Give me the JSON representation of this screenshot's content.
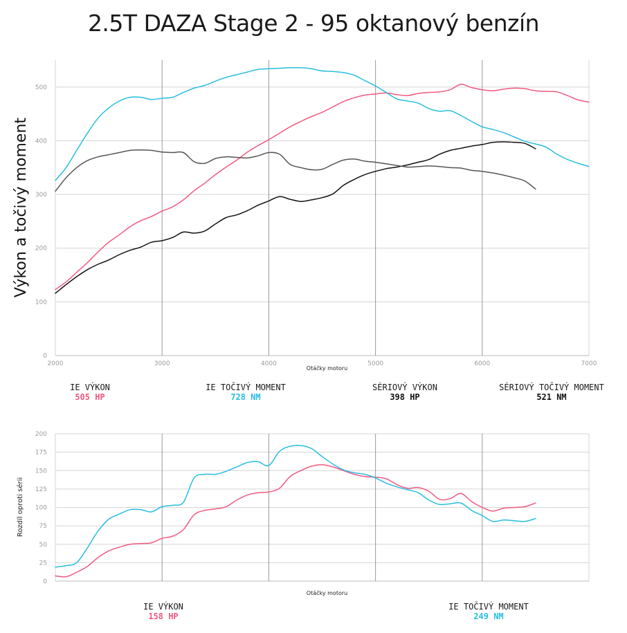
{
  "title": "2.5T DAZA Stage 2 - 95 oktanový benzín",
  "colors": {
    "pink": "#f0597f",
    "cyan": "#27bde0",
    "gray": "#555555",
    "black": "#111111",
    "grid": "#d4d4d4",
    "gridDark": "#999999"
  },
  "chart_data": [
    {
      "type": "line",
      "title": "2.5T DAZA Stage 2 - 95 oktanový benzín",
      "xlabel": "Otáčky motoru",
      "ylabel": "Výkon a točivý moment",
      "xlim": [
        2000,
        7000
      ],
      "ylim": [
        0,
        550
      ],
      "xticks": [
        2000,
        3000,
        4000,
        5000,
        6000,
        7000
      ],
      "yticks": [
        0,
        100,
        200,
        300,
        400,
        500
      ],
      "series": [
        {
          "name": "IE VÝKON",
          "color": "#f0597f",
          "x": [
            2000,
            2100,
            2200,
            2300,
            2400,
            2500,
            2600,
            2700,
            2800,
            2900,
            3000,
            3100,
            3200,
            3300,
            3400,
            3500,
            3600,
            3700,
            3800,
            3900,
            4000,
            4100,
            4200,
            4300,
            4400,
            4500,
            4600,
            4700,
            4800,
            4900,
            5000,
            5100,
            5200,
            5300,
            5400,
            5500,
            5600,
            5700,
            5800,
            5900,
            6000,
            6100,
            6200,
            6300,
            6400,
            6500,
            6600,
            6700,
            6800,
            6900,
            7000
          ],
          "values": [
            123,
            137,
            155,
            173,
            193,
            211,
            225,
            240,
            251,
            259,
            269,
            277,
            290,
            307,
            321,
            337,
            351,
            364,
            379,
            391,
            402,
            414,
            426,
            436,
            445,
            453,
            463,
            473,
            480,
            485,
            487,
            489,
            486,
            484,
            488,
            490,
            491,
            495,
            505,
            499,
            495,
            493,
            496,
            498,
            497,
            493,
            492,
            491,
            484,
            476,
            472
          ]
        },
        {
          "name": "IE TOČIVÝ MOMENT",
          "color": "#27bde0",
          "x": [
            2000,
            2100,
            2200,
            2300,
            2400,
            2500,
            2600,
            2700,
            2800,
            2900,
            3000,
            3100,
            3200,
            3300,
            3400,
            3500,
            3600,
            3700,
            3800,
            3900,
            4000,
            4100,
            4200,
            4300,
            4400,
            4500,
            4600,
            4700,
            4800,
            4900,
            5000,
            5100,
            5200,
            5300,
            5400,
            5500,
            5600,
            5700,
            5800,
            5900,
            6000,
            6100,
            6200,
            6300,
            6400,
            6500,
            6600,
            6700,
            6800,
            6900,
            7000
          ],
          "values": [
            326,
            350,
            382,
            414,
            442,
            461,
            474,
            481,
            481,
            477,
            479,
            481,
            490,
            498,
            503,
            511,
            518,
            523,
            528,
            533,
            534,
            535,
            536,
            536,
            534,
            530,
            529,
            527,
            522,
            512,
            502,
            490,
            478,
            474,
            470,
            460,
            455,
            456,
            447,
            436,
            426,
            421,
            415,
            407,
            399,
            394,
            388,
            375,
            365,
            358,
            352
          ]
        },
        {
          "name": "SÉRIOVÝ VÝKON",
          "color": "#111111",
          "x": [
            2000,
            2100,
            2200,
            2300,
            2400,
            2500,
            2600,
            2700,
            2800,
            2900,
            3000,
            3100,
            3200,
            3300,
            3400,
            3500,
            3600,
            3700,
            3800,
            3900,
            4000,
            4100,
            4200,
            4300,
            4400,
            4500,
            4600,
            4700,
            4800,
            4900,
            5000,
            5100,
            5200,
            5300,
            5400,
            5500,
            5600,
            5700,
            5800,
            5900,
            6000,
            6100,
            6200,
            6300,
            6400,
            6500
          ],
          "values": [
            116,
            132,
            147,
            160,
            170,
            178,
            188,
            196,
            202,
            211,
            214,
            220,
            230,
            228,
            232,
            245,
            257,
            262,
            270,
            280,
            288,
            296,
            291,
            287,
            290,
            294,
            301,
            317,
            328,
            337,
            343,
            348,
            351,
            355,
            360,
            365,
            375,
            382,
            386,
            390,
            393,
            397,
            398,
            397,
            395,
            385
          ]
        },
        {
          "name": "SÉRIOVÝ TOČIVÝ MOMENT",
          "color": "#555555",
          "x": [
            2000,
            2100,
            2200,
            2300,
            2400,
            2500,
            2600,
            2700,
            2800,
            2900,
            3000,
            3100,
            3200,
            3300,
            3400,
            3500,
            3600,
            3700,
            3800,
            3900,
            4000,
            4100,
            4200,
            4300,
            4400,
            4500,
            4600,
            4700,
            4800,
            4900,
            5000,
            5100,
            5200,
            5300,
            5400,
            5500,
            5600,
            5700,
            5800,
            5900,
            6000,
            6100,
            6200,
            6300,
            6400,
            6500
          ],
          "values": [
            306,
            331,
            350,
            363,
            370,
            374,
            378,
            382,
            383,
            382,
            379,
            378,
            378,
            361,
            358,
            367,
            370,
            369,
            368,
            372,
            378,
            375,
            356,
            350,
            346,
            347,
            356,
            364,
            366,
            362,
            360,
            357,
            354,
            351,
            352,
            353,
            352,
            350,
            349,
            345,
            343,
            340,
            336,
            331,
            325,
            310
          ]
        }
      ]
    },
    {
      "type": "line",
      "xlabel": "Otáčky motoru",
      "ylabel": "Rozdíl oproti sérii",
      "xlim": [
        2000,
        7000
      ],
      "ylim": [
        0,
        200
      ],
      "xticks": [
        2000,
        3000,
        4000,
        5000,
        6000,
        7000
      ],
      "yticks": [
        0,
        25,
        50,
        75,
        100,
        125,
        150,
        175,
        200
      ],
      "series": [
        {
          "name": "IE VÝKON",
          "color": "#f0597f",
          "x": [
            2000,
            2100,
            2200,
            2300,
            2400,
            2500,
            2600,
            2700,
            2800,
            2900,
            3000,
            3100,
            3200,
            3300,
            3400,
            3500,
            3600,
            3700,
            3800,
            3900,
            4000,
            4100,
            4200,
            4300,
            4400,
            4500,
            4600,
            4700,
            4800,
            4900,
            5000,
            5100,
            5200,
            5300,
            5400,
            5500,
            5600,
            5700,
            5800,
            5900,
            6000,
            6100,
            6200,
            6300,
            6400,
            6500
          ],
          "values": [
            7,
            6,
            12,
            20,
            32,
            41,
            46,
            50,
            51,
            52,
            58,
            61,
            70,
            90,
            96,
            98,
            101,
            110,
            117,
            120,
            121,
            126,
            142,
            150,
            156,
            158,
            155,
            150,
            145,
            142,
            141,
            139,
            131,
            126,
            127,
            122,
            111,
            112,
            119,
            108,
            100,
            95,
            99,
            100,
            101,
            106
          ]
        },
        {
          "name": "IE TOČIVÝ MOMENT",
          "color": "#27bde0",
          "x": [
            2000,
            2100,
            2200,
            2300,
            2400,
            2500,
            2600,
            2700,
            2800,
            2900,
            3000,
            3100,
            3200,
            3300,
            3400,
            3500,
            3600,
            3700,
            3800,
            3900,
            4000,
            4100,
            4200,
            4300,
            4400,
            4500,
            4600,
            4700,
            4800,
            4900,
            5000,
            5100,
            5200,
            5300,
            5400,
            5500,
            5600,
            5700,
            5800,
            5900,
            6000,
            6100,
            6200,
            6300,
            6400,
            6500
          ],
          "values": [
            19,
            21,
            25,
            45,
            68,
            84,
            91,
            97,
            97,
            94,
            101,
            103,
            107,
            140,
            145,
            145,
            149,
            155,
            161,
            162,
            157,
            176,
            183,
            184,
            180,
            169,
            159,
            151,
            147,
            145,
            140,
            133,
            128,
            124,
            120,
            110,
            104,
            105,
            106,
            96,
            89,
            81,
            83,
            82,
            81,
            85
          ]
        }
      ]
    }
  ],
  "legend_top": [
    {
      "name": "IE VÝKON",
      "value": "505 HP",
      "color": "#f0597f"
    },
    {
      "name": "IE TOČIVÝ MOMENT",
      "value": "728 NM",
      "color": "#27bde0"
    },
    {
      "name": "SÉRIOVÝ VÝKON",
      "value": "398 HP",
      "color": "#111111"
    },
    {
      "name": "SÉRIOVÝ TOČIVÝ MOMENT",
      "value": "521 NM",
      "color": "#111111"
    }
  ],
  "legend_bottom": [
    {
      "name": "IE VÝKON",
      "value": "158 HP",
      "color": "#f0597f"
    },
    {
      "name": "IE TOČIVÝ MOMENT",
      "value": "249 NM",
      "color": "#27bde0"
    }
  ]
}
